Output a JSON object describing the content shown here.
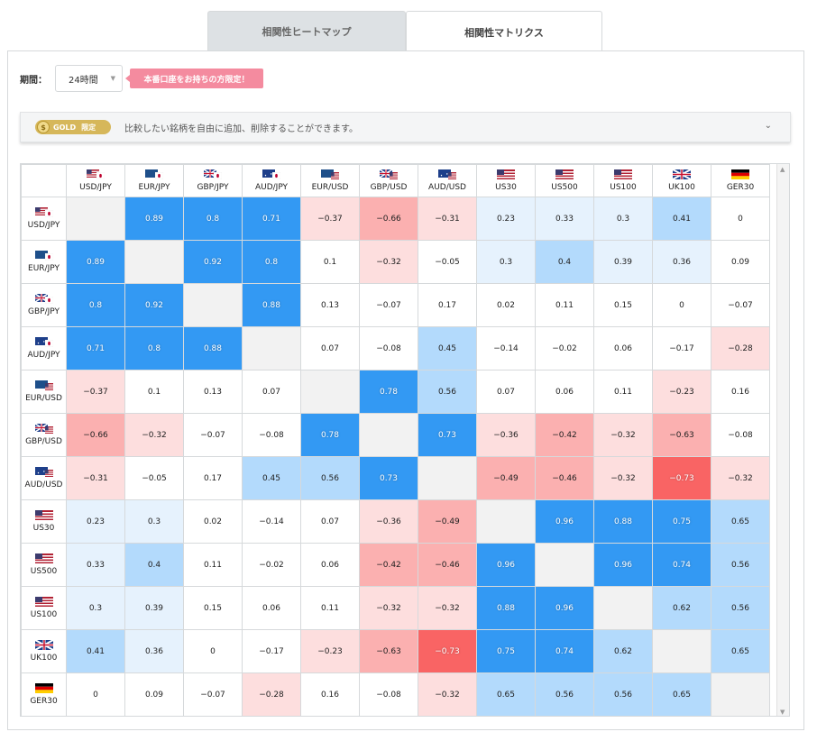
{
  "tabs": [
    {
      "label": "相関性ヒートマップ",
      "active": false
    },
    {
      "label": "相関性マトリクス",
      "active": true
    }
  ],
  "period": {
    "label": "期間：",
    "selected": "24時間"
  },
  "promo": "本番口座をお持ちの方限定！",
  "gold": {
    "badge": "GOLD",
    "limit": "限定",
    "text": "比較したい銘柄を自由に追加、削除することができます。"
  },
  "colors": {
    "strong_pos": "#3399f3",
    "mid_pos": "#b3dafc",
    "weak_pos": "#e6f2fd",
    "strong_neg": "#f96464",
    "mid_neg": "#fbb0b0",
    "weak_neg": "#fddede",
    "diag": "#f2f2f2"
  },
  "matrix": {
    "symbols": [
      "USD/JPY",
      "EUR/JPY",
      "GBP/JPY",
      "AUD/JPY",
      "EUR/USD",
      "GBP/USD",
      "AUD/USD",
      "US30",
      "US500",
      "US100",
      "UK100",
      "GER30"
    ],
    "flags": [
      "us-jp",
      "eu-jp",
      "uk-jp",
      "au-jp",
      "eu-us",
      "uk-us",
      "au-us",
      "us",
      "us",
      "us",
      "uk",
      "de"
    ],
    "values": [
      [
        null,
        0.89,
        0.8,
        0.71,
        -0.37,
        -0.66,
        -0.31,
        0.23,
        0.33,
        0.3,
        0.41,
        0
      ],
      [
        0.89,
        null,
        0.92,
        0.8,
        0.1,
        -0.32,
        -0.05,
        0.3,
        0.4,
        0.39,
        0.36,
        0.09
      ],
      [
        0.8,
        0.92,
        null,
        0.88,
        0.13,
        -0.07,
        0.17,
        0.02,
        0.11,
        0.15,
        0,
        -0.07
      ],
      [
        0.71,
        0.8,
        0.88,
        null,
        0.07,
        -0.08,
        0.45,
        -0.14,
        -0.02,
        0.06,
        -0.17,
        -0.28
      ],
      [
        -0.37,
        0.1,
        0.13,
        0.07,
        null,
        0.78,
        0.56,
        0.07,
        0.06,
        0.11,
        -0.23,
        0.16
      ],
      [
        -0.66,
        -0.32,
        -0.07,
        -0.08,
        0.78,
        null,
        0.73,
        -0.36,
        -0.42,
        -0.32,
        -0.63,
        -0.08
      ],
      [
        -0.31,
        -0.05,
        0.17,
        0.45,
        0.56,
        0.73,
        null,
        -0.49,
        -0.46,
        -0.32,
        -0.73,
        -0.32
      ],
      [
        0.23,
        0.3,
        0.02,
        -0.14,
        0.07,
        -0.36,
        -0.49,
        null,
        0.96,
        0.88,
        0.75,
        0.65
      ],
      [
        0.33,
        0.4,
        0.11,
        -0.02,
        0.06,
        -0.42,
        -0.46,
        0.96,
        null,
        0.96,
        0.74,
        0.56
      ],
      [
        0.3,
        0.39,
        0.15,
        0.06,
        0.11,
        -0.32,
        -0.32,
        0.88,
        0.96,
        null,
        0.62,
        0.56
      ],
      [
        0.41,
        0.36,
        0,
        -0.17,
        -0.23,
        -0.63,
        -0.73,
        0.75,
        0.74,
        0.62,
        null,
        0.65
      ],
      [
        0,
        0.09,
        -0.07,
        -0.28,
        0.16,
        -0.08,
        -0.32,
        0.65,
        0.56,
        0.56,
        0.65,
        null
      ]
    ]
  }
}
